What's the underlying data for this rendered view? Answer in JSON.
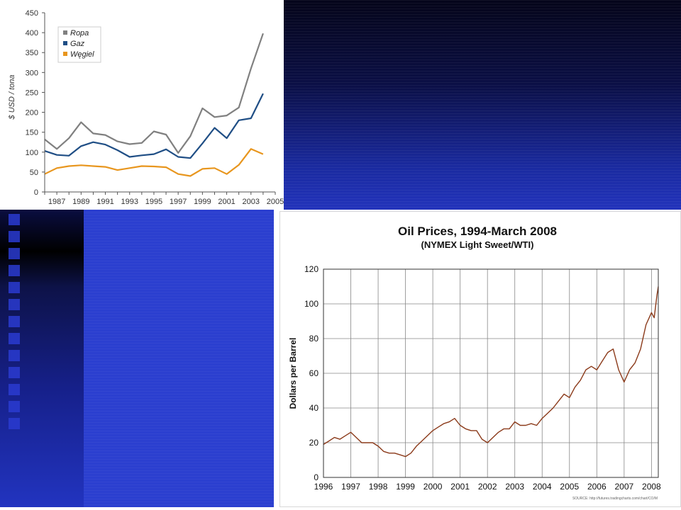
{
  "chart_data": [
    {
      "type": "line",
      "title": "",
      "xlabel": "",
      "ylabel": "$ USD / tona",
      "x": [
        1986,
        1987,
        1988,
        1989,
        1990,
        1991,
        1992,
        1993,
        1994,
        1995,
        1996,
        1997,
        1998,
        1999,
        2000,
        2001,
        2002,
        2003,
        2004,
        2005
      ],
      "x_tick_labels": [
        "1987",
        "1989",
        "1991",
        "1993",
        "1995",
        "1997",
        "1999",
        "2001",
        "2003",
        "2005"
      ],
      "y_ticks": [
        "0",
        "50",
        "100",
        "150",
        "200",
        "250",
        "300",
        "350",
        "400",
        "450"
      ],
      "ylim": [
        0,
        450
      ],
      "legend_position": "top-left",
      "grid": false,
      "series": [
        {
          "name": "Ropa",
          "color": "#808080",
          "values": [
            132,
            108,
            135,
            175,
            147,
            143,
            127,
            120,
            123,
            152,
            144,
            98,
            140,
            210,
            188,
            192,
            212,
            310,
            398,
            null
          ]
        },
        {
          "name": "Gaz",
          "color": "#1f4e85",
          "values": [
            103,
            93,
            91,
            115,
            125,
            119,
            105,
            88,
            92,
            95,
            107,
            88,
            85,
            122,
            161,
            135,
            180,
            185,
            247,
            null
          ]
        },
        {
          "name": "Węgiel",
          "color": "#e8961e",
          "values": [
            45,
            60,
            65,
            67,
            65,
            63,
            55,
            60,
            65,
            64,
            62,
            45,
            40,
            58,
            60,
            45,
            68,
            108,
            95,
            null
          ]
        }
      ]
    },
    {
      "type": "line",
      "title": "Oil Prices, 1994-March 2008",
      "subtitle": "(NYMEX Light Sweet/WTI)",
      "xlabel": "",
      "ylabel": "Dollars per Barrel",
      "x_tick_labels": [
        "1996",
        "1997",
        "1998",
        "1999",
        "2000",
        "2001",
        "2002",
        "2003",
        "2004",
        "2005",
        "2006",
        "2007",
        "2008"
      ],
      "y_ticks": [
        "0",
        "20",
        "40",
        "60",
        "80",
        "100",
        "120"
      ],
      "xlim": [
        1996,
        2008.25
      ],
      "ylim": [
        0,
        120
      ],
      "grid": true,
      "source_note": "SOURCE: http://futures.tradingcharts.com/chart/CO/M",
      "series": [
        {
          "name": "",
          "color": "#8b3a1a",
          "points": [
            [
              1996.0,
              19
            ],
            [
              1996.2,
              21
            ],
            [
              1996.4,
              23
            ],
            [
              1996.6,
              22
            ],
            [
              1996.8,
              24
            ],
            [
              1997.0,
              26
            ],
            [
              1997.2,
              23
            ],
            [
              1997.4,
              20
            ],
            [
              1997.6,
              20
            ],
            [
              1997.8,
              20
            ],
            [
              1998.0,
              18
            ],
            [
              1998.2,
              15
            ],
            [
              1998.4,
              14
            ],
            [
              1998.6,
              14
            ],
            [
              1998.8,
              13
            ],
            [
              1999.0,
              12
            ],
            [
              1999.2,
              14
            ],
            [
              1999.4,
              18
            ],
            [
              1999.6,
              21
            ],
            [
              1999.8,
              24
            ],
            [
              2000.0,
              27
            ],
            [
              2000.2,
              29
            ],
            [
              2000.4,
              31
            ],
            [
              2000.6,
              32
            ],
            [
              2000.8,
              34
            ],
            [
              2001.0,
              30
            ],
            [
              2001.2,
              28
            ],
            [
              2001.4,
              27
            ],
            [
              2001.6,
              27
            ],
            [
              2001.8,
              22
            ],
            [
              2002.0,
              20
            ],
            [
              2002.2,
              23
            ],
            [
              2002.4,
              26
            ],
            [
              2002.6,
              28
            ],
            [
              2002.8,
              28
            ],
            [
              2003.0,
              32
            ],
            [
              2003.2,
              30
            ],
            [
              2003.4,
              30
            ],
            [
              2003.6,
              31
            ],
            [
              2003.8,
              30
            ],
            [
              2004.0,
              34
            ],
            [
              2004.2,
              37
            ],
            [
              2004.4,
              40
            ],
            [
              2004.6,
              44
            ],
            [
              2004.8,
              48
            ],
            [
              2005.0,
              46
            ],
            [
              2005.2,
              52
            ],
            [
              2005.4,
              56
            ],
            [
              2005.6,
              62
            ],
            [
              2005.8,
              64
            ],
            [
              2006.0,
              62
            ],
            [
              2006.2,
              67
            ],
            [
              2006.4,
              72
            ],
            [
              2006.6,
              74
            ],
            [
              2006.8,
              62
            ],
            [
              2007.0,
              55
            ],
            [
              2007.2,
              62
            ],
            [
              2007.4,
              66
            ],
            [
              2007.6,
              74
            ],
            [
              2007.8,
              88
            ],
            [
              2008.0,
              95
            ],
            [
              2008.1,
              92
            ],
            [
              2008.2,
              105
            ],
            [
              2008.25,
              110
            ]
          ]
        }
      ]
    }
  ]
}
